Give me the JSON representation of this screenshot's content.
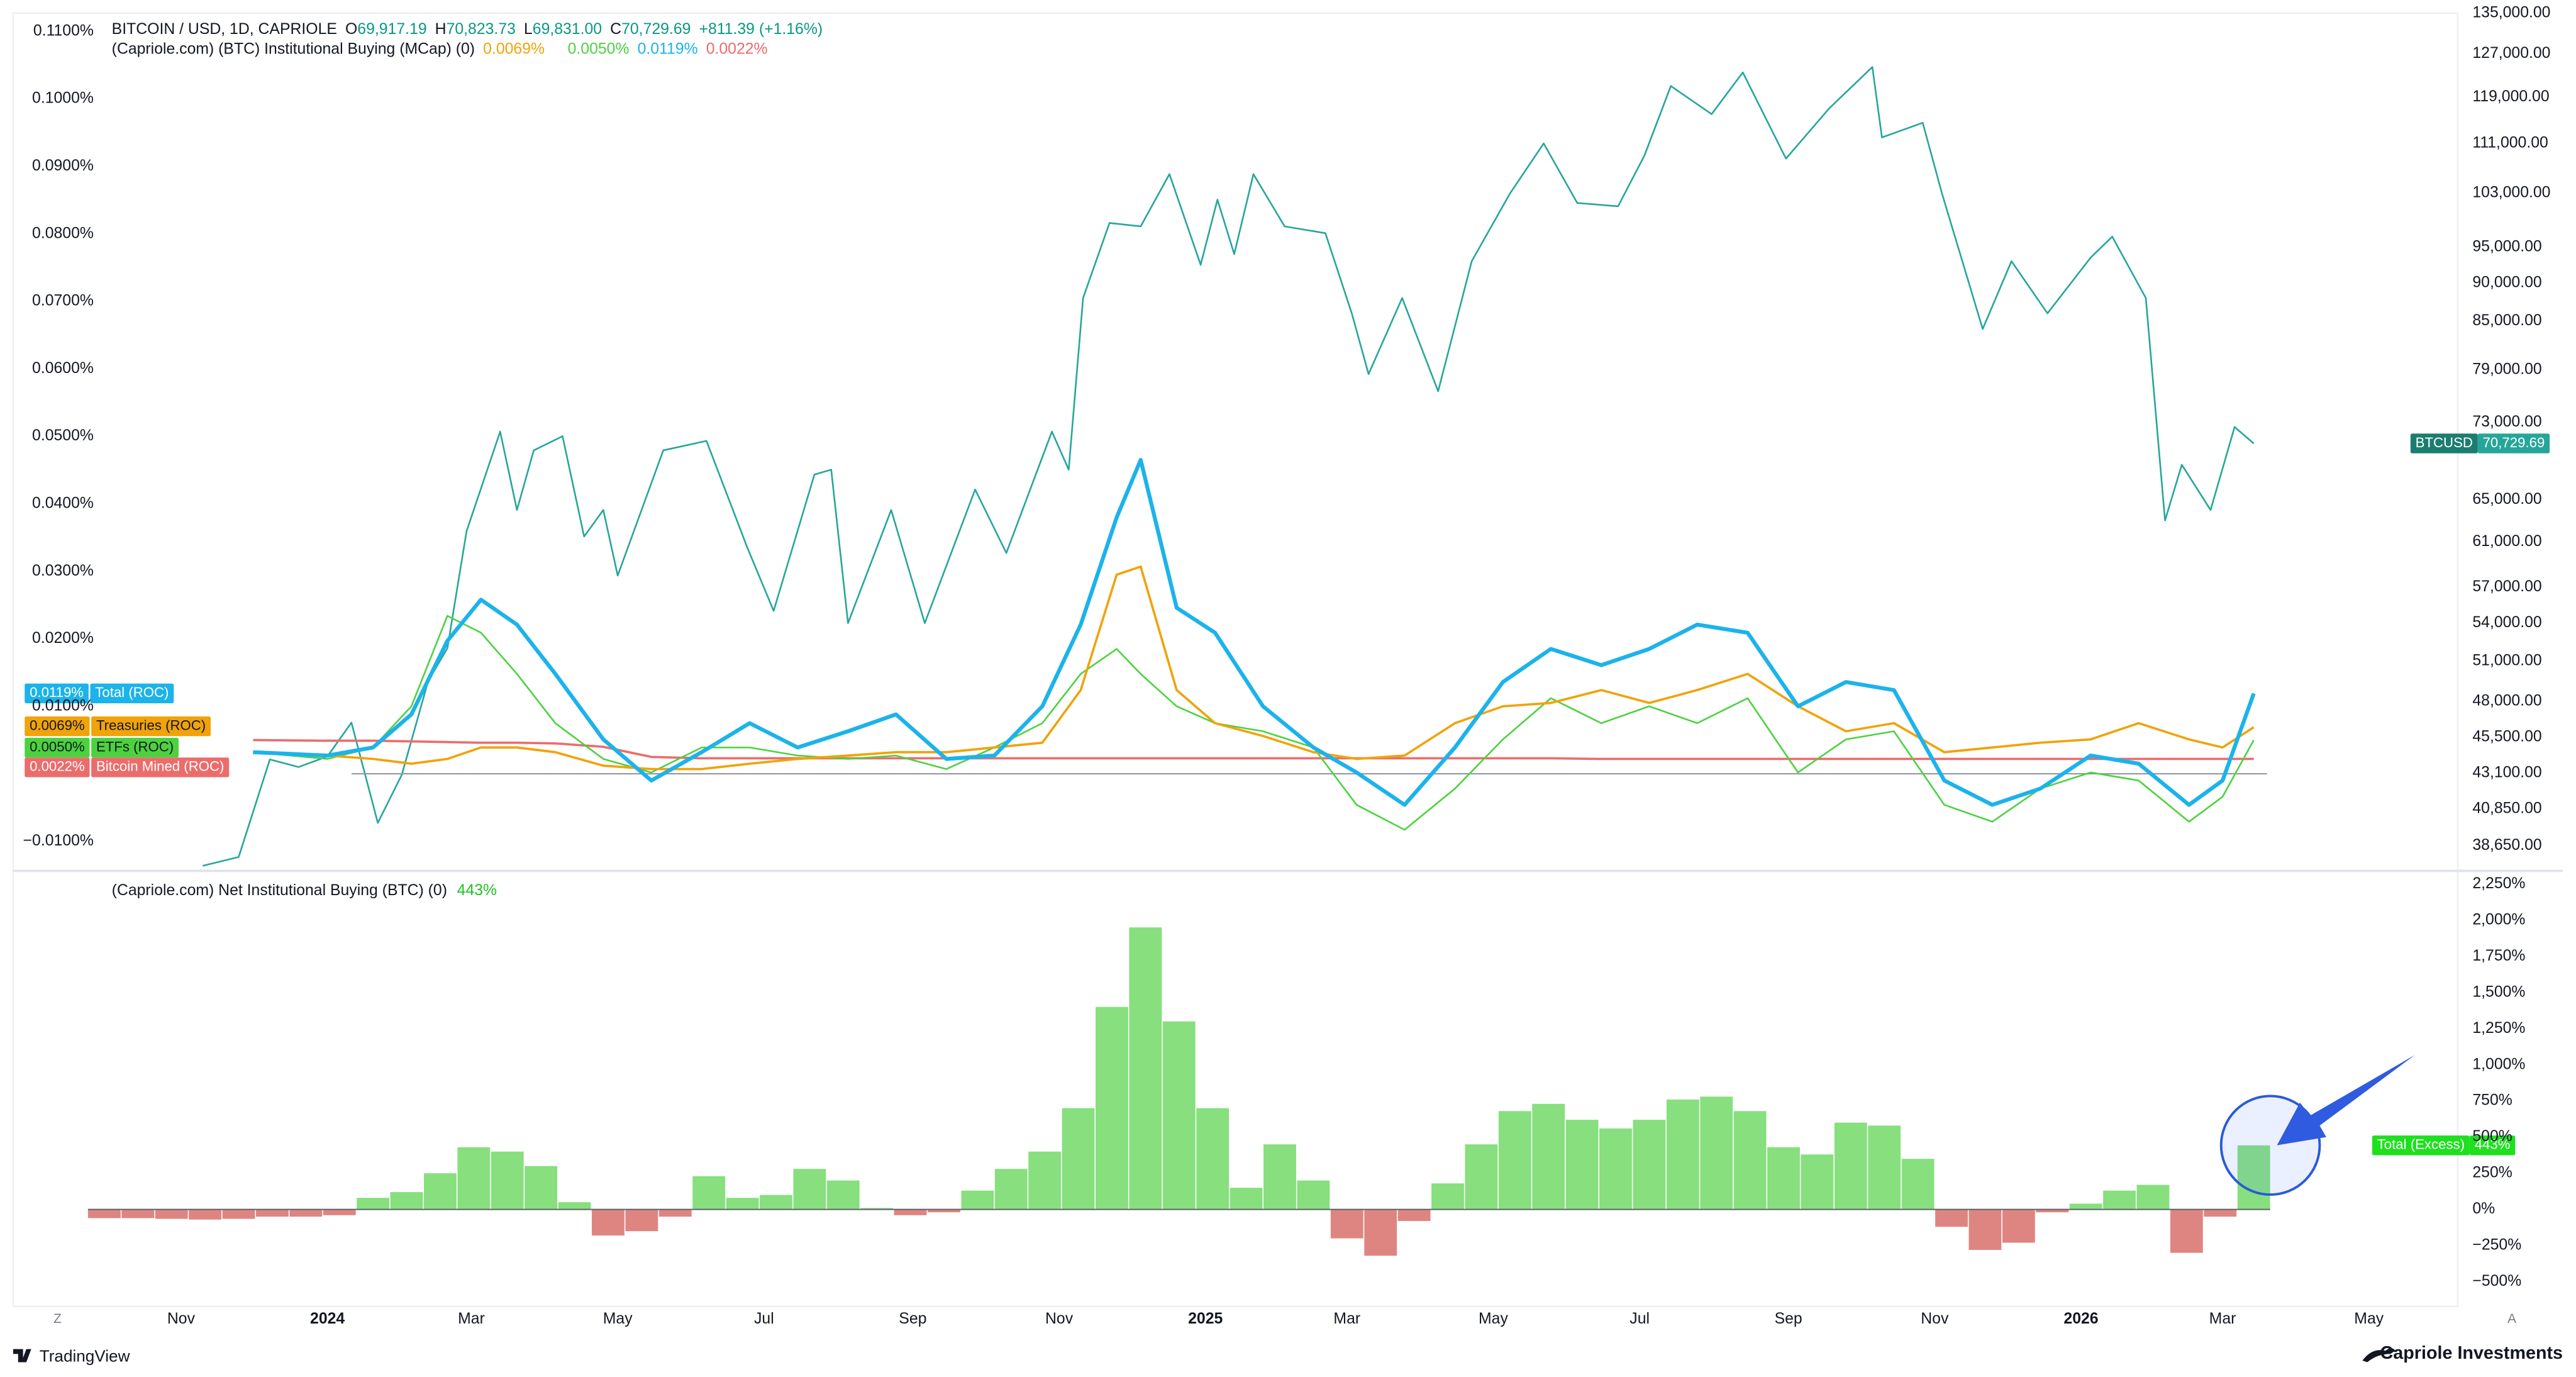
{
  "chart_data": [
    {
      "type": "line",
      "title": "BITCOIN / USD, 1D, CAPRIOLE",
      "ohlc": [
        {
          "key": "O",
          "value": "69,917.19"
        },
        {
          "key": "H",
          "value": "70,823.73"
        },
        {
          "key": "L",
          "value": "69,831.00"
        },
        {
          "key": "C",
          "value": "70,729.69"
        }
      ],
      "change": "+811.39 (+1.16%)",
      "log_scale": true,
      "y_axis_side": "right",
      "x": [
        "2023-11-10",
        "2023-11-25",
        "2023-12-08",
        "2023-12-20",
        "2024-01-01",
        "2024-01-11",
        "2024-01-22",
        "2024-02-01",
        "2024-02-12",
        "2024-02-20",
        "2024-02-28",
        "2024-03-13",
        "2024-03-20",
        "2024-03-27",
        "2024-04-08",
        "2024-04-17",
        "2024-04-25",
        "2024-05-01",
        "2024-05-20",
        "2024-06-07",
        "2024-06-24",
        "2024-07-05",
        "2024-07-22",
        "2024-07-29",
        "2024-08-05",
        "2024-08-23",
        "2024-09-06",
        "2024-09-27",
        "2024-10-10",
        "2024-10-29",
        "2024-11-05",
        "2024-11-11",
        "2024-11-22",
        "2024-12-05",
        "2024-12-17",
        "2024-12-30",
        "2025-01-06",
        "2025-01-13",
        "2025-01-21",
        "2025-02-03",
        "2025-02-20",
        "2025-03-03",
        "2025-03-10",
        "2025-03-24",
        "2025-04-08",
        "2025-04-22",
        "2025-05-08",
        "2025-05-22",
        "2025-06-05",
        "2025-06-22",
        "2025-07-03",
        "2025-07-14",
        "2025-07-31",
        "2025-08-13",
        "2025-08-31",
        "2025-09-18",
        "2025-10-06",
        "2025-10-10",
        "2025-10-27",
        "2025-11-04",
        "2025-11-21",
        "2025-12-03",
        "2025-12-18",
        "2026-01-05",
        "2026-01-14",
        "2026-01-28",
        "2026-02-05",
        "2026-02-12",
        "2026-02-24",
        "2026-03-06",
        "2026-03-14"
      ],
      "series": [
        {
          "name": "BTCUSD",
          "color": "#26a69a",
          "line_width": 1,
          "values": [
            37500,
            38000,
            44000,
            43500,
            44200,
            46500,
            40000,
            43000,
            49500,
            52000,
            62000,
            72000,
            64000,
            70000,
            71500,
            61500,
            64000,
            58000,
            70000,
            71000,
            60500,
            55000,
            67500,
            68000,
            54000,
            64000,
            54000,
            66000,
            60000,
            72000,
            68000,
            88000,
            98500,
            98000,
            106000,
            92500,
            102000,
            94000,
            106000,
            98000,
            97000,
            86000,
            78500,
            88000,
            76500,
            93000,
            103000,
            111000,
            101500,
            101000,
            109000,
            121000,
            116000,
            123500,
            108500,
            117000,
            124500,
            112000,
            114500,
            103000,
            84000,
            93000,
            86000,
            93500,
            96500,
            88000,
            63000,
            68500,
            64000,
            72500,
            70729.69
          ],
          "last_value_label": "70,729.69"
        }
      ],
      "xlim": [
        "2023-08-23",
        "2026-06-07"
      ],
      "ylim": [
        37400,
        135000
      ],
      "yticks": [
        {
          "value": 135000,
          "label": "135,000.00"
        },
        {
          "value": 127000,
          "label": "127,000.00"
        },
        {
          "value": 119000,
          "label": "119,000.00"
        },
        {
          "value": 111000,
          "label": "111,000.00"
        },
        {
          "value": 103000,
          "label": "103,000.00"
        },
        {
          "value": 95000,
          "label": "95,000.00"
        },
        {
          "value": 90000,
          "label": "90,000.00"
        },
        {
          "value": 85000,
          "label": "85,000.00"
        },
        {
          "value": 79000,
          "label": "79,000.00"
        },
        {
          "value": 73000,
          "label": "73,000.00"
        },
        {
          "value": 65000,
          "label": "65,000.00"
        },
        {
          "value": 61000,
          "label": "61,000.00"
        },
        {
          "value": 57000,
          "label": "57,000.00"
        },
        {
          "value": 54000,
          "label": "54,000.00"
        },
        {
          "value": 51000,
          "label": "51,000.00"
        },
        {
          "value": 48000,
          "label": "48,000.00"
        },
        {
          "value": 45500,
          "label": "45,500.00"
        },
        {
          "value": 43100,
          "label": "43,100.00"
        },
        {
          "value": 40850,
          "label": "40,850.00"
        },
        {
          "value": 38650,
          "label": "38,650.00"
        }
      ]
    },
    {
      "type": "line",
      "title": "(Capriole.com) (BTC) Institutional Buying (MCap) (0)",
      "y_axis_side": "left",
      "zero_line": true,
      "x": [
        "2023-12-01",
        "2024-01-01",
        "2024-01-20",
        "2024-02-05",
        "2024-02-20",
        "2024-03-05",
        "2024-03-20",
        "2024-04-05",
        "2024-04-25",
        "2024-05-15",
        "2024-06-05",
        "2024-06-25",
        "2024-07-15",
        "2024-08-05",
        "2024-08-25",
        "2024-09-15",
        "2024-10-05",
        "2024-10-25",
        "2024-11-10",
        "2024-11-25",
        "2024-12-05",
        "2024-12-20",
        "2025-01-05",
        "2025-01-25",
        "2025-02-15",
        "2025-03-05",
        "2025-03-25",
        "2025-04-15",
        "2025-05-05",
        "2025-05-25",
        "2025-06-15",
        "2025-07-05",
        "2025-07-25",
        "2025-08-15",
        "2025-09-05",
        "2025-09-25",
        "2025-10-15",
        "2025-11-05",
        "2025-11-25",
        "2025-12-15",
        "2026-01-05",
        "2026-01-25",
        "2026-02-15",
        "2026-03-01",
        "2026-03-14"
      ],
      "series": [
        {
          "name": "Total (ROC)",
          "color": "#1cb3ea",
          "line_width": 2.4,
          "values": [
            0.0032,
            0.0027,
            0.0039,
            0.0088,
            0.0197,
            0.0258,
            0.0221,
            0.0148,
            0.0051,
            -0.001,
            0.0032,
            0.0075,
            0.0039,
            0.0063,
            0.0088,
            0.0022,
            0.0027,
            0.01,
            0.0221,
            0.038,
            0.0465,
            0.0246,
            0.0209,
            0.01,
            0.0039,
            0.0002,
            -0.0046,
            0.0039,
            0.0136,
            0.0185,
            0.0161,
            0.0185,
            0.0221,
            0.0209,
            0.01,
            0.0136,
            0.0124,
            -0.001,
            -0.0046,
            -0.0022,
            0.0027,
            0.0015,
            -0.0046,
            -0.001,
            0.0119
          ],
          "last_value_label": "0.0119%"
        },
        {
          "name": "Treasuries (ROC)",
          "color": "#f0a30a",
          "line_width": 1.4,
          "values": [
            0.0032,
            0.0027,
            0.0022,
            0.0015,
            0.0022,
            0.0039,
            0.0039,
            0.0032,
            0.0012,
            0.0007,
            0.0007,
            0.0015,
            0.0022,
            0.0027,
            0.0032,
            0.0032,
            0.0039,
            0.0046,
            0.0124,
            0.0295,
            0.0307,
            0.0124,
            0.0075,
            0.0056,
            0.0032,
            0.0022,
            0.0027,
            0.0075,
            0.01,
            0.0105,
            0.0124,
            0.0105,
            0.0124,
            0.0148,
            0.01,
            0.0063,
            0.0075,
            0.0032,
            0.0039,
            0.0046,
            0.0051,
            0.0075,
            0.0051,
            0.0039,
            0.0069
          ],
          "last_value_label": "0.0069%"
        },
        {
          "name": "ETFs (ROC)",
          "color": "#4cd23f",
          "line_width": 1,
          "values": [
            0.0032,
            0.0022,
            0.0039,
            0.01,
            0.0234,
            0.0209,
            0.0148,
            0.0075,
            0.0022,
            0.0002,
            0.0039,
            0.0039,
            0.0027,
            0.0022,
            0.0027,
            0.0007,
            0.0039,
            0.0075,
            0.0148,
            0.0185,
            0.0148,
            0.01,
            0.0075,
            0.0063,
            0.0039,
            -0.0046,
            -0.0083,
            -0.0022,
            0.0051,
            0.0112,
            0.0075,
            0.01,
            0.0075,
            0.0112,
            0.0002,
            0.0051,
            0.0063,
            -0.0046,
            -0.0071,
            -0.0022,
            0.0002,
            -0.001,
            -0.0071,
            -0.0034,
            0.005
          ],
          "last_value_label": "0.0050%"
        },
        {
          "name": "Bitcoin Mined (ROC)",
          "color": "#ec6c6c",
          "line_width": 1.4,
          "values": [
            0.005,
            0.0049,
            0.0049,
            0.0048,
            0.0047,
            0.0046,
            0.0046,
            0.0045,
            0.004,
            0.0025,
            0.0023,
            0.0023,
            0.0023,
            0.0023,
            0.0023,
            0.0023,
            0.0023,
            0.0023,
            0.0023,
            0.0023,
            0.0023,
            0.0023,
            0.0023,
            0.0023,
            0.0023,
            0.0023,
            0.0023,
            0.0023,
            0.0023,
            0.0023,
            0.0022,
            0.0022,
            0.0022,
            0.0022,
            0.0022,
            0.0022,
            0.0022,
            0.0022,
            0.0022,
            0.0022,
            0.0022,
            0.0022,
            0.0022,
            0.0022,
            0.0022
          ],
          "last_value_label": "0.0022%"
        }
      ],
      "xlim": [
        "2023-08-23",
        "2026-06-07"
      ],
      "ylim": [
        -0.0139,
        0.1127
      ],
      "yticks": [
        {
          "value": 0.11,
          "label": "0.1100%"
        },
        {
          "value": 0.1,
          "label": "0.1000%"
        },
        {
          "value": 0.09,
          "label": "0.0900%"
        },
        {
          "value": 0.08,
          "label": "0.0800%"
        },
        {
          "value": 0.07,
          "label": "0.0700%"
        },
        {
          "value": 0.06,
          "label": "0.0600%"
        },
        {
          "value": 0.05,
          "label": "0.0500%"
        },
        {
          "value": 0.04,
          "label": "0.0400%"
        },
        {
          "value": 0.03,
          "label": "0.0300%"
        },
        {
          "value": 0.02,
          "label": "0.0200%"
        },
        {
          "value": 0.01,
          "label": "0.0100%"
        },
        {
          "value": -0.01,
          "label": "−0.0100%"
        }
      ]
    },
    {
      "type": "bar",
      "title": "(Capriole.com) Net Institutional Buying (BTC) (0)",
      "y_axis_side": "right",
      "zero_line": true,
      "x": [
        "2023-09-30",
        "2023-10-14",
        "2023-10-28",
        "2023-11-11",
        "2023-11-25",
        "2023-12-09",
        "2023-12-23",
        "2024-01-06",
        "2024-01-20",
        "2024-02-03",
        "2024-02-17",
        "2024-03-02",
        "2024-03-16",
        "2024-03-30",
        "2024-04-13",
        "2024-04-27",
        "2024-05-11",
        "2024-05-25",
        "2024-06-08",
        "2024-06-22",
        "2024-07-06",
        "2024-07-20",
        "2024-08-03",
        "2024-08-17",
        "2024-08-31",
        "2024-09-14",
        "2024-09-28",
        "2024-10-12",
        "2024-10-26",
        "2024-11-09",
        "2024-11-23",
        "2024-12-07",
        "2024-12-21",
        "2025-01-04",
        "2025-01-18",
        "2025-02-01",
        "2025-02-15",
        "2025-03-01",
        "2025-03-15",
        "2025-03-29",
        "2025-04-12",
        "2025-04-26",
        "2025-05-10",
        "2025-05-24",
        "2025-06-07",
        "2025-06-21",
        "2025-07-05",
        "2025-07-19",
        "2025-08-02",
        "2025-08-16",
        "2025-08-30",
        "2025-09-13",
        "2025-09-27",
        "2025-10-11",
        "2025-10-25",
        "2025-11-08",
        "2025-11-22",
        "2025-12-06",
        "2025-12-20",
        "2026-01-03",
        "2026-01-17",
        "2026-01-31",
        "2026-02-14",
        "2026-02-28",
        "2026-03-14"
      ],
      "series": [
        {
          "name": "Total (Excess)",
          "colors": {
            "positive": "#87df7e",
            "negative": "#df8581"
          },
          "badge_color": "#1ee01e",
          "values": [
            -60,
            -60,
            -65,
            -70,
            -65,
            -50,
            -50,
            -40,
            80,
            120,
            250,
            430,
            400,
            300,
            50,
            -180,
            -150,
            -50,
            230,
            80,
            100,
            280,
            200,
            10,
            -40,
            -20,
            130,
            280,
            400,
            700,
            1400,
            1950,
            1300,
            700,
            150,
            450,
            200,
            -200,
            -320,
            -80,
            180,
            450,
            680,
            730,
            620,
            560,
            620,
            760,
            780,
            680,
            430,
            380,
            600,
            580,
            350,
            -120,
            -280,
            -230,
            -20,
            40,
            130,
            170,
            -300,
            -50,
            443
          ],
          "last_value_label": "443%"
        }
      ],
      "xlim": [
        "2023-08-23",
        "2026-06-07"
      ],
      "ylim": [
        -670,
        2318
      ],
      "yticks": [
        {
          "value": 2250,
          "label": "2,250%"
        },
        {
          "value": 2000,
          "label": "2,000%"
        },
        {
          "value": 1750,
          "label": "1,750%"
        },
        {
          "value": 1500,
          "label": "1,500%"
        },
        {
          "value": 1250,
          "label": "1,250%"
        },
        {
          "value": 1000,
          "label": "1,000%"
        },
        {
          "value": 750,
          "label": "750%"
        },
        {
          "value": 500,
          "label": "500%"
        },
        {
          "value": 250,
          "label": "250%"
        },
        {
          "value": 0,
          "label": "0%"
        },
        {
          "value": -250,
          "label": "−250%"
        },
        {
          "value": -500,
          "label": "−500%"
        }
      ],
      "xticks": [
        {
          "value": "2023-11-01",
          "label": "Nov"
        },
        {
          "value": "2024-01-01",
          "label": "2024"
        },
        {
          "value": "2024-03-01",
          "label": "Mar"
        },
        {
          "value": "2024-05-01",
          "label": "May"
        },
        {
          "value": "2024-07-01",
          "label": "Jul"
        },
        {
          "value": "2024-09-01",
          "label": "Sep"
        },
        {
          "value": "2024-11-01",
          "label": "Nov"
        },
        {
          "value": "2025-01-01",
          "label": "2025"
        },
        {
          "value": "2025-03-01",
          "label": "Mar"
        },
        {
          "value": "2025-05-01",
          "label": "May"
        },
        {
          "value": "2025-07-01",
          "label": "Jul"
        },
        {
          "value": "2025-09-01",
          "label": "Sep"
        },
        {
          "value": "2025-11-01",
          "label": "Nov"
        },
        {
          "value": "2026-01-01",
          "label": "2026"
        },
        {
          "value": "2026-03-01",
          "label": "Mar"
        },
        {
          "value": "2026-05-01",
          "label": "May"
        }
      ]
    }
  ],
  "footer": {
    "left_button": "Z",
    "right_button": "A",
    "brand": "TradingView",
    "watermark": "Capriole Investments"
  }
}
